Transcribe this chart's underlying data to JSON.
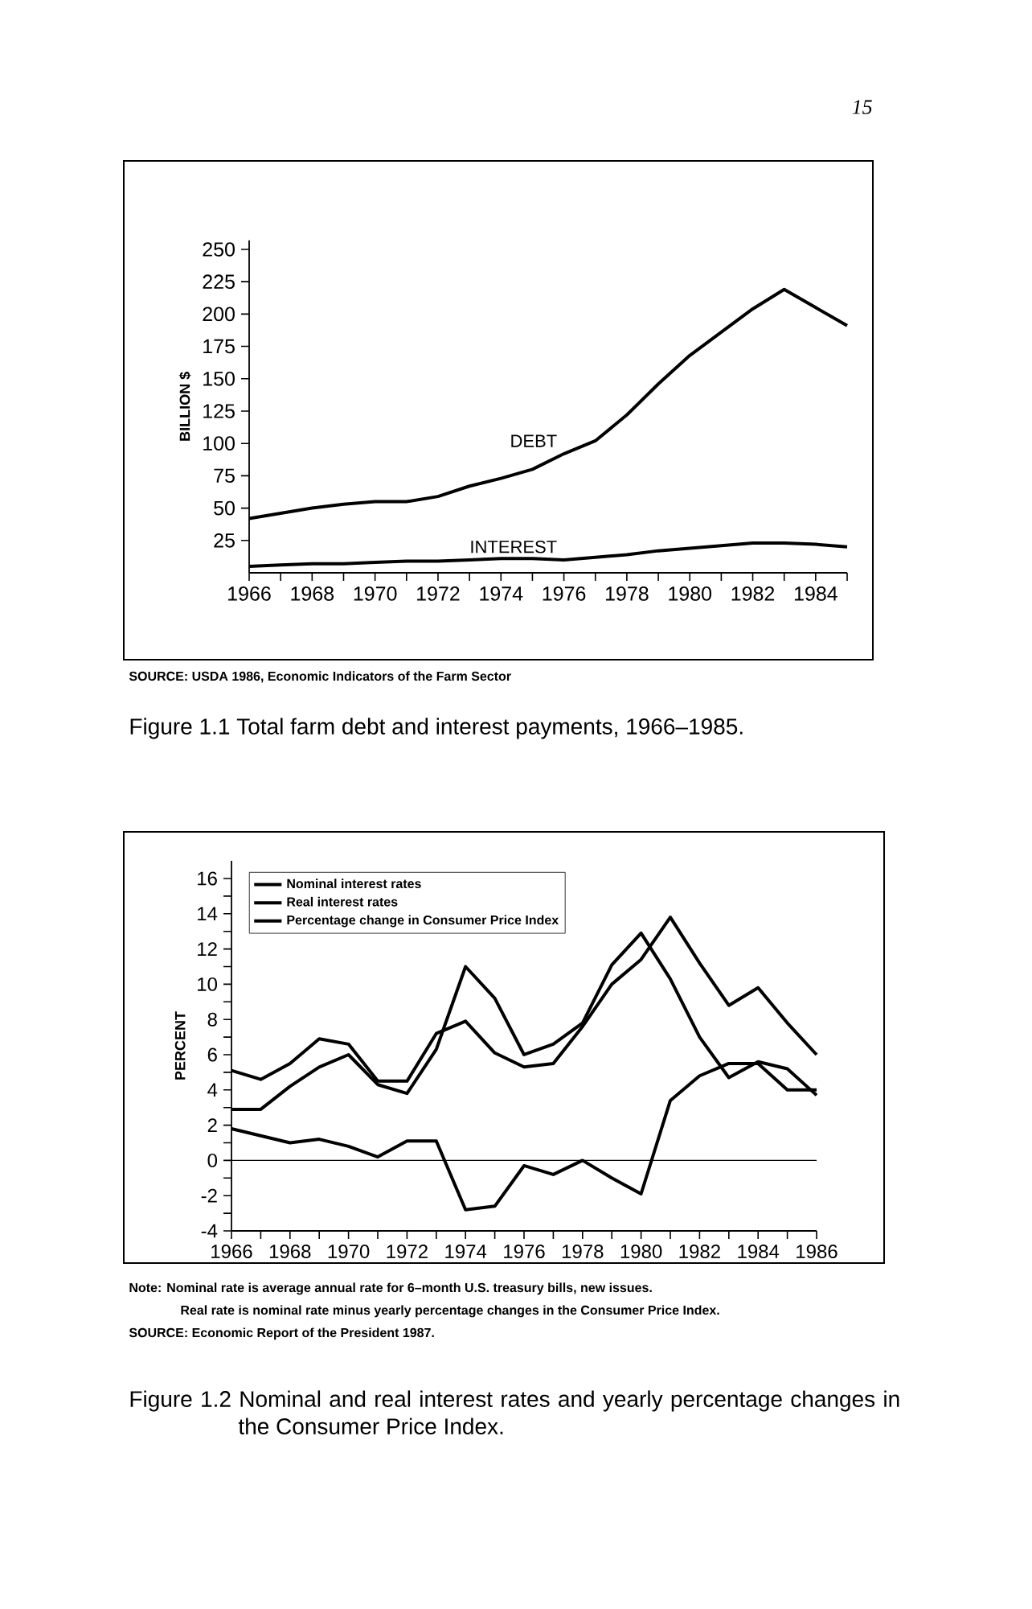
{
  "chart_data": [
    {
      "type": "line",
      "title": "Figure 1.1  Total farm debt and interest payments, 1966–1985.",
      "ylabel": "BILLION $",
      "annotations": [
        "15",
        "SOURCE:  USDA 1986, Economic Indicators of the Farm Sector"
      ],
      "x": [
        1966,
        1967,
        1968,
        1969,
        1970,
        1971,
        1972,
        1973,
        1974,
        1975,
        1976,
        1977,
        1978,
        1979,
        1980,
        1981,
        1982,
        1983,
        1984,
        1985
      ],
      "series": [
        {
          "name": "DEBT",
          "color": "#000000",
          "values": [
            42,
            46,
            50,
            53,
            55,
            55,
            59,
            67,
            73,
            80,
            92,
            102,
            122,
            146,
            168,
            186,
            204,
            219,
            205,
            191
          ]
        },
        {
          "name": "INTEREST",
          "color": "#000000",
          "values": [
            5,
            6,
            7,
            7,
            8,
            9,
            9,
            10,
            11,
            11,
            10,
            12,
            14,
            17,
            19,
            21,
            23,
            23,
            22,
            20
          ]
        }
      ],
      "xlim": [
        1966,
        1985
      ],
      "ylim": [
        0,
        257
      ],
      "xticks": [
        1966,
        {
          "value": 1967,
          "label": null
        },
        1968,
        {
          "value": 1969,
          "label": null
        },
        1970,
        {
          "value": 1971,
          "label": null
        },
        1972,
        {
          "value": 1973,
          "label": null
        },
        1974,
        {
          "value": 1975,
          "label": null
        },
        1976,
        {
          "value": 1977,
          "label": null
        },
        1978,
        {
          "value": 1979,
          "label": null
        },
        1980,
        {
          "value": 1981,
          "label": null
        },
        1982,
        {
          "value": 1983,
          "label": null
        },
        1984,
        {
          "value": 1985,
          "label": null
        }
      ],
      "yticks": [
        25,
        50,
        75,
        100,
        125,
        150,
        175,
        200,
        225,
        250
      ],
      "legend": false,
      "marker": "none",
      "line_style": "solid"
    },
    {
      "type": "line",
      "title": "Figure 1.2  Nominal and real interest rates and yearly percentage changes in the Consumer Price Index.",
      "ylabel": "PERCENT",
      "annotations": [
        "Note:   Nominal rate is average annual rate for 6–month U.S. treasury bills, new issues.",
        "Real rate is nominal rate minus yearly percentage changes in the Consumer Price Index.",
        "SOURCE:  Economic Report of the President 1987."
      ],
      "x": [
        1966,
        1967,
        1968,
        1969,
        1970,
        1971,
        1972,
        1973,
        1974,
        1975,
        1976,
        1977,
        1978,
        1979,
        1980,
        1981,
        1982,
        1983,
        1984,
        1985,
        1986
      ],
      "series": [
        {
          "name": "Nominal interest rates",
          "color": "#000000",
          "values": [
            5.1,
            4.6,
            5.5,
            6.9,
            6.6,
            4.5,
            4.5,
            7.2,
            7.9,
            6.1,
            5.3,
            5.5,
            7.6,
            10.0,
            11.4,
            13.8,
            11.2,
            8.8,
            9.8,
            7.8,
            6.0
          ]
        },
        {
          "name": "Real interest rates",
          "color": "#000000",
          "values": [
            1.8,
            1.4,
            1.0,
            1.2,
            0.8,
            0.2,
            1.1,
            1.1,
            -2.8,
            -2.6,
            -0.3,
            -0.8,
            0.0,
            -1.0,
            -1.9,
            3.4,
            4.8,
            5.5,
            5.5,
            4.0,
            4.0
          ]
        },
        {
          "name": "Percentage change in Consumer Price Index",
          "color": "#000000",
          "values": [
            2.9,
            2.9,
            4.2,
            5.3,
            6.0,
            4.3,
            3.8,
            6.3,
            11.0,
            9.2,
            6.0,
            6.6,
            7.8,
            11.1,
            12.9,
            10.3,
            7.0,
            4.7,
            5.6,
            5.2,
            3.7
          ]
        }
      ],
      "xlim": [
        1966,
        1986
      ],
      "ylim": [
        -4,
        17
      ],
      "xticks": [
        1966,
        {
          "value": 1967,
          "label": null
        },
        1968,
        {
          "value": 1969,
          "label": null
        },
        1970,
        {
          "value": 1971,
          "label": null
        },
        1972,
        {
          "value": 1973,
          "label": null
        },
        1974,
        {
          "value": 1975,
          "label": null
        },
        1976,
        {
          "value": 1977,
          "label": null
        },
        1978,
        {
          "value": 1979,
          "label": null
        },
        1980,
        {
          "value": 1981,
          "label": null
        },
        1982,
        {
          "value": 1983,
          "label": null
        },
        1984,
        {
          "value": 1985,
          "label": null
        },
        1986
      ],
      "yticks": [
        -4,
        {
          "value": -3,
          "label": null
        },
        -2,
        {
          "value": -1,
          "label": null
        },
        0,
        {
          "value": 1,
          "label": null
        },
        2,
        {
          "value": 3,
          "label": null
        },
        4,
        {
          "value": 5,
          "label": null
        },
        6,
        {
          "value": 7,
          "label": null
        },
        8,
        {
          "value": 9,
          "label": null
        },
        10,
        {
          "value": 11,
          "label": null
        },
        12,
        {
          "value": 13,
          "label": null
        },
        14,
        {
          "value": 15,
          "label": null
        },
        16
      ],
      "ref_lines": [
        {
          "axis": "y",
          "value": 0
        }
      ],
      "legend": "top left",
      "marker": "none",
      "line_style": "solid"
    }
  ]
}
